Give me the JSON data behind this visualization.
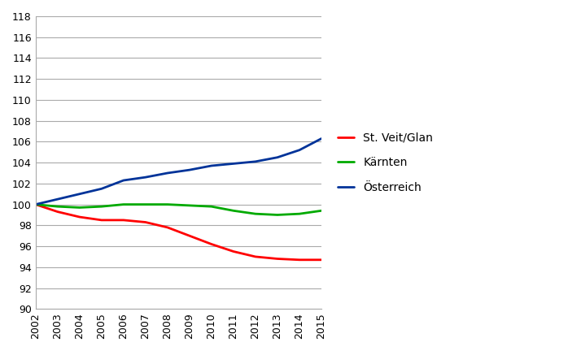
{
  "years": [
    2002,
    2003,
    2004,
    2005,
    2006,
    2007,
    2008,
    2009,
    2010,
    2011,
    2012,
    2013,
    2014,
    2015
  ],
  "st_veit": [
    100.0,
    99.3,
    98.8,
    98.5,
    98.5,
    98.3,
    97.8,
    97.0,
    96.2,
    95.5,
    95.0,
    94.8,
    94.7,
    94.7
  ],
  "kaernten": [
    100.0,
    99.8,
    99.7,
    99.8,
    100.0,
    100.0,
    100.0,
    99.9,
    99.8,
    99.4,
    99.1,
    99.0,
    99.1,
    99.4
  ],
  "oesterreich": [
    100.0,
    100.5,
    101.0,
    101.5,
    102.3,
    102.6,
    103.0,
    103.3,
    103.7,
    103.9,
    104.1,
    104.5,
    105.2,
    106.3
  ],
  "series_labels": [
    "St. Veit/Glan",
    "Kärnten",
    "Österreich"
  ],
  "series_colors": [
    "#ff0000",
    "#00aa00",
    "#003399"
  ],
  "ylim": [
    90,
    118
  ],
  "yticks": [
    90,
    92,
    94,
    96,
    98,
    100,
    102,
    104,
    106,
    108,
    110,
    112,
    114,
    116,
    118
  ],
  "background_color": "#ffffff",
  "line_width": 2.0,
  "legend_fontsize": 10,
  "tick_fontsize": 9,
  "grid_color": "#aaaaaa",
  "grid_linewidth": 0.8
}
